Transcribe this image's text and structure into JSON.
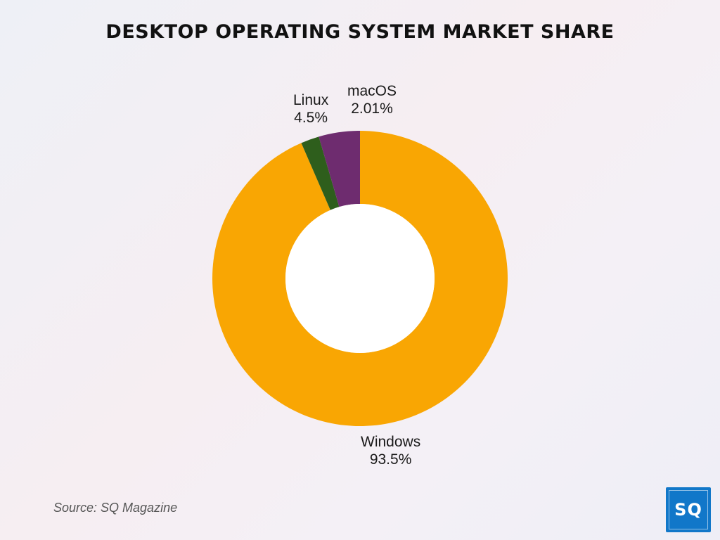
{
  "chart_data": {
    "type": "pie",
    "title": "DESKTOP OPERATING SYSTEM MARKET SHARE",
    "donut": true,
    "start": "top, clockwise",
    "slices": [
      {
        "label": "Windows",
        "value": 93.5,
        "value_label": "93.5%",
        "color": "#f9a603"
      },
      {
        "label": "macOS",
        "value": 2.01,
        "value_label": "2.01%",
        "color": "#2e5e1c"
      },
      {
        "label": "Linux",
        "value": 4.5,
        "value_label": "4.5%",
        "color": "#6e2c6f"
      }
    ]
  },
  "source": "Source: SQ Magazine",
  "logo": {
    "text": "SQ",
    "color": "#1177c9"
  }
}
